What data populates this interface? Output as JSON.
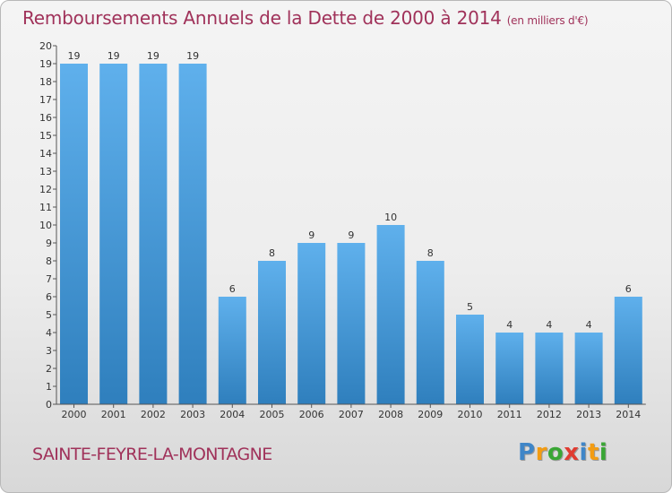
{
  "title": "Remboursements Annuels de la Dette de 2000 à 2014",
  "subtitle": "(en milliers d'€)",
  "commune": "SAINTE-FEYRE-LA-MONTAGNE",
  "logo": {
    "letters": [
      "P",
      "r",
      "o",
      "x",
      "i",
      "t",
      "i"
    ],
    "colors": [
      "#3f86c8",
      "#f39c12",
      "#3aa635",
      "#e03c31",
      "#3f86c8",
      "#f39c12",
      "#3aa635"
    ]
  },
  "colors": {
    "title": "#a0325a",
    "bar_top": "#5fb0ec",
    "bar_bottom": "#2f7fbd",
    "axis": "#555555",
    "grid": "#bbbbbb"
  },
  "chart_data": {
    "type": "bar",
    "categories": [
      "2000",
      "2001",
      "2002",
      "2003",
      "2004",
      "2005",
      "2006",
      "2007",
      "2008",
      "2009",
      "2010",
      "2011",
      "2012",
      "2013",
      "2014"
    ],
    "values": [
      19,
      19,
      19,
      19,
      6,
      8,
      9,
      9,
      10,
      8,
      5,
      4,
      4,
      4,
      6
    ],
    "yticks": [
      "0",
      "1",
      "2",
      "3",
      "4",
      "5",
      "6",
      "7",
      "8",
      "9",
      "10",
      "11",
      "12",
      "13",
      "14",
      "15",
      "16",
      "17",
      "18",
      "19",
      "20"
    ],
    "ylim": [
      0,
      20
    ],
    "grid": false
  }
}
